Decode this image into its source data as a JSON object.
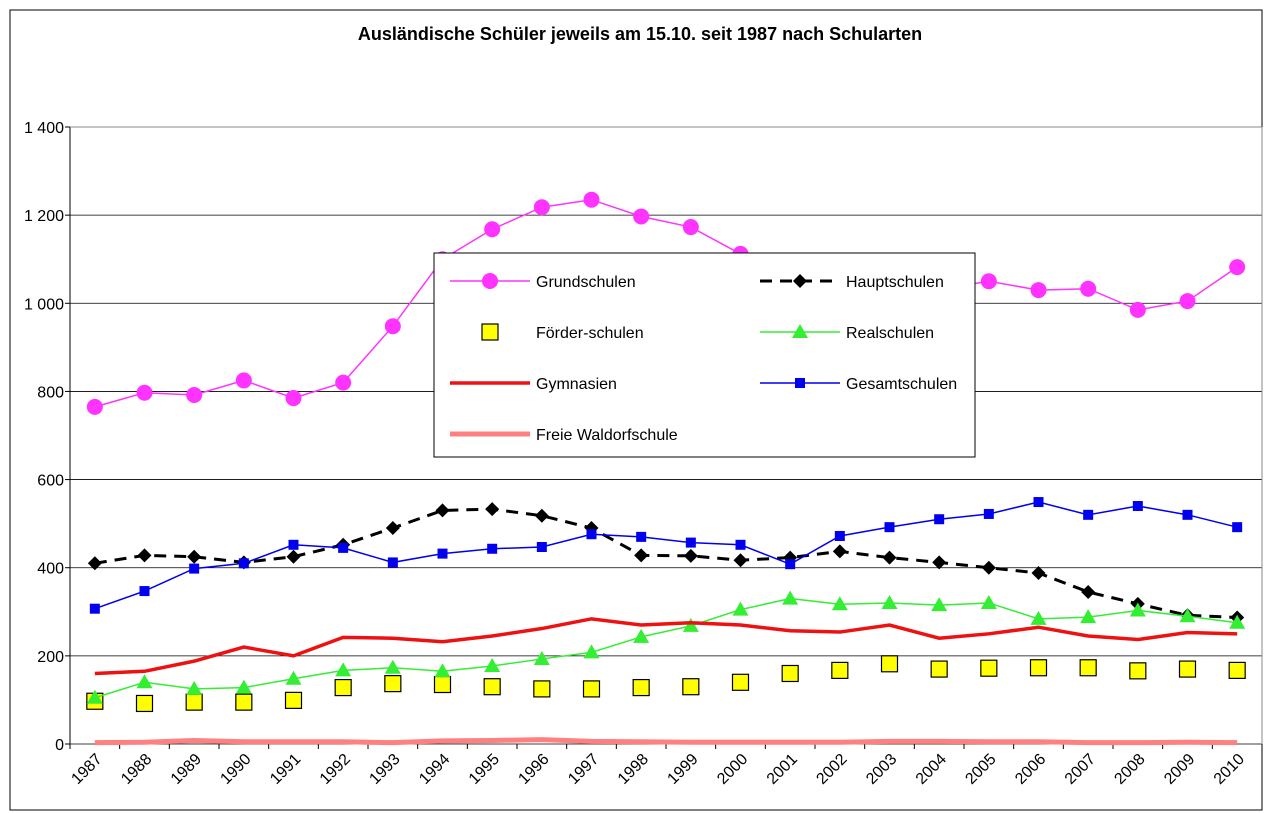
{
  "chart_data": {
    "type": "line",
    "title": "Ausländische Schüler jeweils am 15.10. seit 1987 nach Schularten",
    "categories": [
      "1987",
      "1988",
      "1989",
      "1990",
      "1991",
      "1992",
      "1993",
      "1994",
      "1995",
      "1996",
      "1997",
      "1998",
      "1999",
      "2000",
      "2001",
      "2002",
      "2003",
      "2004",
      "2005",
      "2006",
      "2007",
      "2008",
      "2009",
      "2010"
    ],
    "ylim": [
      0,
      1400
    ],
    "yticks": [
      0,
      200,
      400,
      600,
      800,
      {
        "value": 1000,
        "label": "1 000"
      },
      {
        "value": 1200,
        "label": "1 200"
      },
      {
        "value": 1400,
        "label": "1 400"
      }
    ],
    "grid": true,
    "series": [
      {
        "name": "Grundschulen",
        "color": "#ff33ff",
        "line": "solid",
        "width": 1.5,
        "marker": "circle",
        "values": [
          765,
          797,
          792,
          825,
          785,
          820,
          948,
          1100,
          1168,
          1218,
          1235,
          1197,
          1173,
          1112,
          1072,
          1082,
          1040,
          1032,
          1050,
          1030,
          1033,
          985,
          1005,
          1082
        ]
      },
      {
        "name": "Hauptschulen",
        "color": "#000000",
        "line": "dashed",
        "width": 3,
        "marker": "diamond",
        "values": [
          410,
          428,
          425,
          412,
          425,
          452,
          490,
          530,
          533,
          518,
          490,
          428,
          427,
          417,
          423,
          437,
          423,
          412,
          400,
          388,
          345,
          318,
          292,
          287
        ]
      },
      {
        "name": "Förder-schulen",
        "color": "#ffff00",
        "line": "none",
        "width": 0,
        "marker": "square-outline",
        "values": [
          97,
          92,
          95,
          95,
          99,
          128,
          137,
          135,
          130,
          125,
          125,
          128,
          130,
          140,
          160,
          167,
          182,
          170,
          172,
          173,
          173,
          166,
          170,
          167
        ]
      },
      {
        "name": "Realschulen",
        "color": "#33ee33",
        "line": "solid",
        "width": 1.5,
        "marker": "triangle",
        "values": [
          105,
          140,
          125,
          128,
          148,
          167,
          173,
          165,
          177,
          193,
          208,
          243,
          268,
          305,
          330,
          317,
          320,
          315,
          320,
          284,
          288,
          303,
          290,
          275
        ]
      },
      {
        "name": "Gymnasien",
        "color": "#ee1111",
        "line": "solid",
        "width": 3.5,
        "marker": "none",
        "values": [
          160,
          165,
          188,
          220,
          200,
          242,
          240,
          232,
          245,
          262,
          284,
          270,
          275,
          270,
          257,
          254,
          270,
          240,
          250,
          265,
          245,
          237,
          253,
          250
        ]
      },
      {
        "name": "Gesamtschulen",
        "color": "#0000ee",
        "line": "solid",
        "width": 1.5,
        "marker": "square",
        "values": [
          307,
          347,
          398,
          410,
          452,
          445,
          412,
          432,
          443,
          447,
          476,
          470,
          457,
          452,
          408,
          472,
          492,
          510,
          522,
          549,
          520,
          540,
          520,
          492
        ]
      },
      {
        "name": "Freie Waldorfschule",
        "color": "#ff8080",
        "line": "solid",
        "width": 5,
        "marker": "none",
        "values": [
          3,
          4,
          8,
          5,
          5,
          5,
          3,
          7,
          8,
          10,
          6,
          5,
          4,
          4,
          4,
          4,
          6,
          6,
          5,
          5,
          3,
          3,
          4,
          3
        ]
      }
    ]
  }
}
